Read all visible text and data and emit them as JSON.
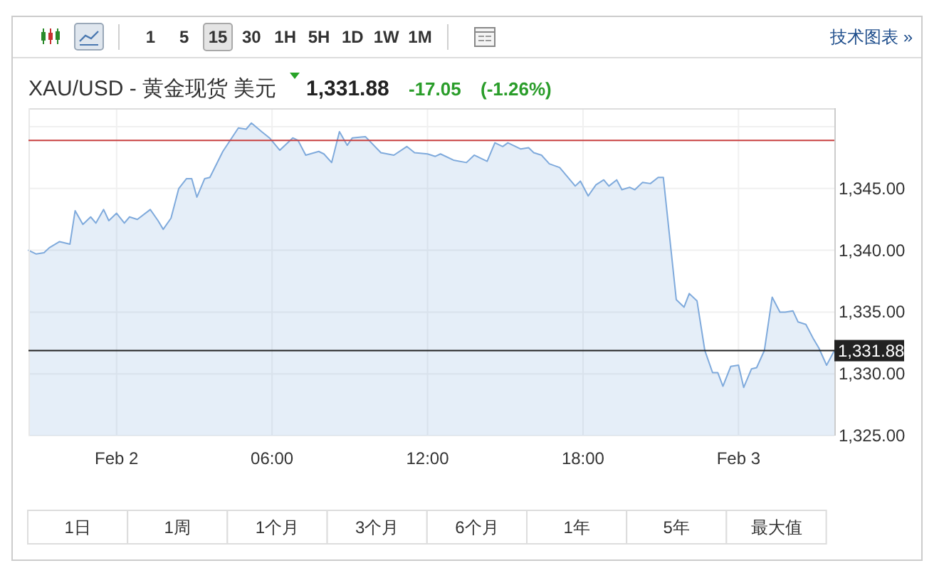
{
  "chart_data": {
    "type": "area",
    "title": "XAU/USD - 黄金现货 美元",
    "annotations": [
      "1,331.88",
      "-17.05",
      "(-1.26%)",
      "1",
      "5",
      "15",
      "30",
      "1H",
      "5H",
      "1D",
      "1W",
      "1M",
      "技术图表 »",
      "1日",
      "1周",
      "1个月",
      "3个月",
      "6个月",
      "1年",
      "5年",
      "最大值"
    ],
    "x": [
      -3.4,
      -3.1,
      -2.8,
      -2.6,
      -2.2,
      -1.8,
      -1.6,
      -1.3,
      -1.0,
      -0.8,
      -0.5,
      -0.3,
      0.0,
      0.3,
      0.5,
      0.8,
      1.3,
      1.6,
      1.8,
      2.1,
      2.4,
      2.7,
      2.9,
      3.1,
      3.4,
      3.6,
      4.1,
      4.7,
      5.0,
      5.2,
      5.6,
      5.9,
      6.3,
      6.8,
      7.0,
      7.3,
      7.8,
      8.0,
      8.3,
      8.6,
      8.9,
      9.1,
      9.6,
      10.2,
      10.7,
      11.2,
      11.5,
      12.0,
      12.3,
      12.5,
      13.0,
      13.5,
      13.8,
      14.3,
      14.6,
      14.9,
      15.1,
      15.6,
      15.9,
      16.1,
      16.4,
      16.7,
      17.1,
      17.7,
      17.9,
      18.2,
      18.5,
      18.8,
      19.0,
      19.3,
      19.5,
      19.8,
      20.0,
      20.3,
      20.6,
      20.9,
      21.1,
      21.6,
      21.9,
      22.1,
      22.4,
      22.7,
      23.0,
      23.2,
      23.4,
      23.7,
      24.0,
      24.2,
      24.5,
      24.7,
      25.0,
      25.3,
      25.6,
      25.8,
      26.1,
      26.3,
      26.6,
      26.9,
      27.1,
      27.4,
      27.7
    ],
    "values": [
      1340.0,
      1339.7,
      1339.8,
      1340.2,
      1340.7,
      1340.5,
      1343.2,
      1342.1,
      1342.7,
      1342.2,
      1343.3,
      1342.4,
      1343.0,
      1342.2,
      1342.7,
      1342.5,
      1343.3,
      1342.4,
      1341.7,
      1342.6,
      1345.0,
      1345.8,
      1345.8,
      1344.3,
      1345.8,
      1345.9,
      1348.0,
      1349.9,
      1349.8,
      1350.3,
      1349.6,
      1349.1,
      1348.1,
      1349.1,
      1348.9,
      1347.7,
      1348.0,
      1347.8,
      1347.1,
      1349.6,
      1348.5,
      1349.1,
      1349.2,
      1347.9,
      1347.7,
      1348.4,
      1347.9,
      1347.8,
      1347.6,
      1347.8,
      1347.3,
      1347.1,
      1347.7,
      1347.2,
      1348.7,
      1348.4,
      1348.7,
      1348.2,
      1348.3,
      1347.9,
      1347.7,
      1347.0,
      1346.7,
      1345.2,
      1345.6,
      1344.4,
      1345.3,
      1345.7,
      1345.2,
      1345.7,
      1344.9,
      1345.1,
      1344.9,
      1345.5,
      1345.4,
      1345.9,
      1345.9,
      1336.0,
      1335.4,
      1336.5,
      1335.9,
      1331.9,
      1330.1,
      1330.1,
      1329.0,
      1330.6,
      1330.7,
      1328.9,
      1330.4,
      1330.5,
      1331.9,
      1336.2,
      1335.0,
      1335.0,
      1335.1,
      1334.2,
      1334.0,
      1332.8,
      1332.1,
      1330.7,
      1331.88
    ],
    "color": "#7faadc",
    "xlim": [
      -3.4,
      27.7
    ],
    "xticks": [
      {
        "value": 0,
        "label": "Feb 2"
      },
      {
        "value": 6,
        "label": "06:00"
      },
      {
        "value": 12,
        "label": "12:00"
      },
      {
        "value": 18,
        "label": "18:00"
      },
      {
        "value": 24,
        "label": "Feb 3"
      }
    ],
    "ylim": [
      1325,
      1351.5
    ],
    "yticks": [
      {
        "value": 1325,
        "label": "1,325.00"
      },
      {
        "value": 1330,
        "label": "1,330.00"
      },
      {
        "value": 1335,
        "label": "1,335.00"
      },
      {
        "value": 1340,
        "label": "1,340.00"
      },
      {
        "value": 1345,
        "label": "1,345.00"
      },
      {
        "value": 1350,
        "label": null
      }
    ],
    "grid": true,
    "ref_lines": [
      {
        "axis": "y",
        "value": 1348.9,
        "color": "#c84040"
      },
      {
        "axis": "y",
        "value": 1331.88,
        "label": "1,331.88",
        "color": "#222222"
      }
    ]
  }
}
